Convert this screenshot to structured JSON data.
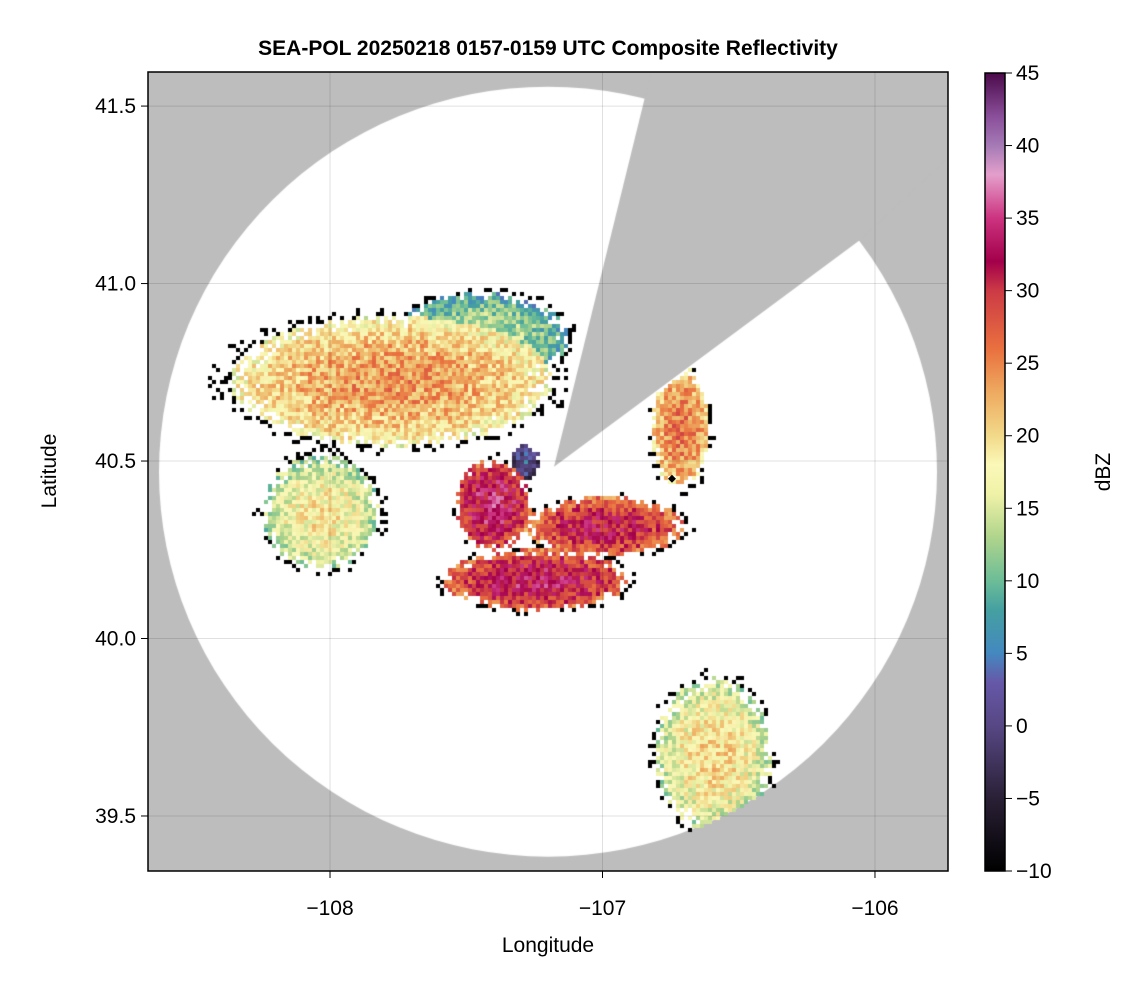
{
  "chart_data": {
    "type": "heatmap",
    "title": "SEA-POL 20250218 0157-0159 UTC Composite Reflectivity",
    "xlabel": "Longitude",
    "ylabel": "Latitude",
    "xlim": [
      -108.668,
      -105.732
    ],
    "ylim": [
      39.345,
      41.596
    ],
    "xticks": [
      -108,
      -107,
      -106
    ],
    "xtick_labels": [
      "−108",
      "−107",
      "−106"
    ],
    "yticks": [
      41.5,
      41.0,
      40.5,
      40.0,
      39.5
    ],
    "ytick_labels": [
      "41.5",
      "41.0",
      "40.5",
      "40.0",
      "39.5"
    ],
    "grid": true,
    "colorbar": {
      "label": "dBZ",
      "range": [
        -10,
        45
      ],
      "ticks": [
        45,
        40,
        35,
        30,
        25,
        20,
        15,
        10,
        5,
        0,
        -5,
        -10
      ],
      "tick_labels": [
        "45",
        "40",
        "35",
        "30",
        "25",
        "20",
        "15",
        "10",
        "5",
        "0",
        "−5",
        "−10"
      ]
    },
    "radar": {
      "center": [
        -107.2,
        40.47
      ],
      "marker": [
        -106.745,
        40.45
      ],
      "blocked_sector_deg": [
        20,
        58
      ]
    },
    "echo_regions": [
      {
        "lon": -107.78,
        "lat": 40.73,
        "rlon": 0.55,
        "rlat": 0.17,
        "dbz": 24
      },
      {
        "lon": -107.41,
        "lat": 40.38,
        "rlon": 0.13,
        "rlat": 0.12,
        "dbz": 34
      },
      {
        "lon": -107.25,
        "lat": 40.17,
        "rlon": 0.32,
        "rlat": 0.08,
        "dbz": 33
      },
      {
        "lon": -107.0,
        "lat": 40.32,
        "rlon": 0.27,
        "rlat": 0.08,
        "dbz": 32
      },
      {
        "lon": -106.72,
        "lat": 40.6,
        "rlon": 0.1,
        "rlat": 0.16,
        "dbz": 26
      },
      {
        "lon": -108.04,
        "lat": 40.36,
        "rlon": 0.2,
        "rlat": 0.15,
        "dbz": 19
      },
      {
        "lon": -107.45,
        "lat": 40.85,
        "rlon": 0.3,
        "rlat": 0.12,
        "dbz": 14
      },
      {
        "lon": -106.6,
        "lat": 39.68,
        "rlon": 0.2,
        "rlat": 0.2,
        "dbz": 20
      },
      {
        "lon": -107.29,
        "lat": 40.5,
        "rlon": 0.05,
        "rlat": 0.05,
        "dbz": 3
      }
    ]
  }
}
